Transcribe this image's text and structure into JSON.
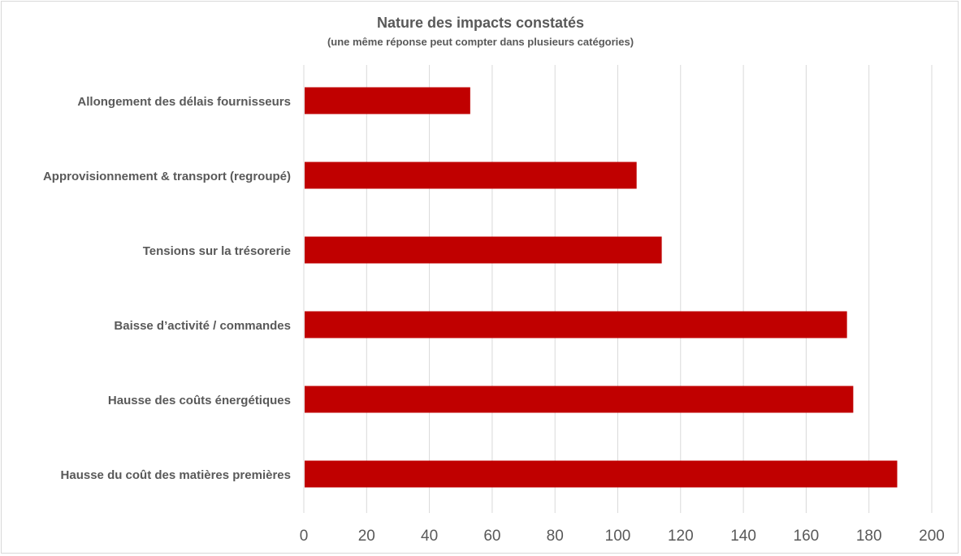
{
  "chart_data": {
    "type": "bar",
    "orientation": "horizontal",
    "title": "Nature des impacts constatés",
    "subtitle": "(une même réponse peut compter dans plusieurs catégories)",
    "xlabel": "",
    "ylabel": "",
    "categories": [
      "Allongement des délais fournisseurs",
      "Approvisionnement & transport (regroupé)",
      "Tensions sur la trésorerie",
      "Baisse d’activité / commandes",
      "Hausse des coûts énergétiques",
      "Hausse du coût des matières premières"
    ],
    "values": [
      53,
      106,
      114,
      173,
      175,
      189
    ],
    "xlim": [
      0,
      200
    ],
    "xticks": [
      "0",
      "20",
      "40",
      "60",
      "80",
      "100",
      "120",
      "140",
      "160",
      "180",
      "200"
    ],
    "grid": true,
    "legend": "none",
    "bar_color": "#C00000"
  }
}
